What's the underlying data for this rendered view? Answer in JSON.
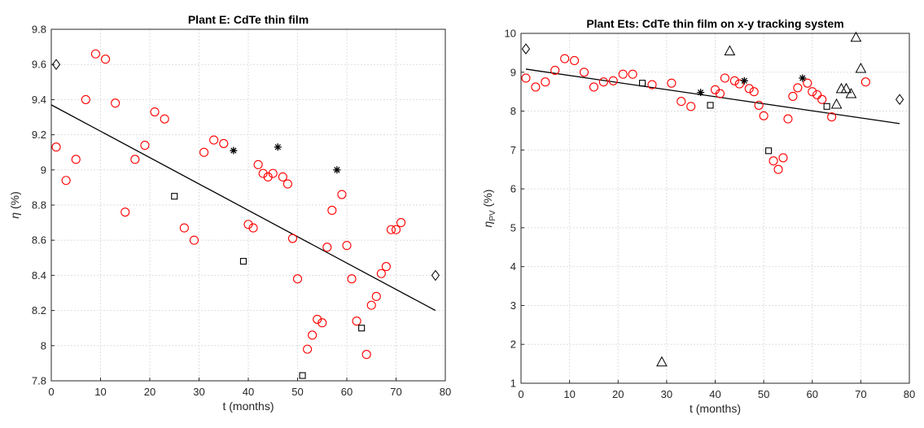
{
  "chart_data": [
    {
      "type": "scatter",
      "title": "Plant E: CdTe thin film",
      "xlabel": "t (months)",
      "ylabel": "η (%)",
      "ylabel_base": "η",
      "ylabel_sub": "",
      "ylabel_unit": "(%)",
      "xlim": [
        0,
        80
      ],
      "ylim": [
        7.8,
        9.8
      ],
      "xticks": [
        0,
        10,
        20,
        30,
        40,
        50,
        60,
        70,
        80
      ],
      "yticks": [
        7.8,
        8,
        8.2,
        8.4,
        8.6,
        8.8,
        9,
        9.2,
        9.4,
        9.6,
        9.8
      ],
      "ytick_labels": [
        "7.8",
        "8",
        "8.2",
        "8.4",
        "8.6",
        "8.8",
        "9",
        "9.2",
        "9.4",
        "9.6",
        "9.8"
      ],
      "grid": true,
      "series": [
        {
          "marker": "circle",
          "color": "#ff0000",
          "points": [
            [
              1,
              9.13
            ],
            [
              3,
              8.94
            ],
            [
              5,
              9.06
            ],
            [
              7,
              9.4
            ],
            [
              9,
              9.66
            ],
            [
              11,
              9.63
            ],
            [
              13,
              9.38
            ],
            [
              15,
              8.76
            ],
            [
              17,
              9.06
            ],
            [
              19,
              9.14
            ],
            [
              21,
              9.33
            ],
            [
              23,
              9.29
            ],
            [
              27,
              8.67
            ],
            [
              29,
              8.6
            ],
            [
              31,
              9.1
            ],
            [
              33,
              9.17
            ],
            [
              35,
              9.15
            ],
            [
              40,
              8.69
            ],
            [
              41,
              8.67
            ],
            [
              42,
              9.03
            ],
            [
              43,
              8.98
            ],
            [
              44,
              8.96
            ],
            [
              45,
              8.98
            ],
            [
              47,
              8.96
            ],
            [
              48,
              8.92
            ],
            [
              49,
              8.61
            ],
            [
              50,
              8.38
            ],
            [
              52,
              7.98
            ],
            [
              53,
              8.06
            ],
            [
              54,
              8.15
            ],
            [
              55,
              8.13
            ],
            [
              56,
              8.56
            ],
            [
              57,
              8.77
            ],
            [
              59,
              8.86
            ],
            [
              60,
              8.57
            ],
            [
              61,
              8.38
            ],
            [
              62,
              8.14
            ],
            [
              64,
              7.95
            ],
            [
              65,
              8.23
            ],
            [
              66,
              8.28
            ],
            [
              67,
              8.41
            ],
            [
              68,
              8.45
            ],
            [
              69,
              8.66
            ],
            [
              70,
              8.66
            ],
            [
              71,
              8.7
            ]
          ]
        },
        {
          "marker": "square",
          "color": "#000000",
          "points": [
            [
              25,
              8.85
            ],
            [
              39,
              8.48
            ],
            [
              51,
              7.83
            ],
            [
              63,
              8.1
            ]
          ]
        },
        {
          "marker": "asterisk",
          "color": "#000000",
          "points": [
            [
              37,
              9.11
            ],
            [
              46,
              9.13
            ],
            [
              58,
              9.0
            ]
          ]
        },
        {
          "marker": "diamond",
          "color": "#000000",
          "points": [
            [
              1,
              9.6
            ],
            [
              78,
              8.4
            ]
          ]
        }
      ],
      "trend": {
        "x": [
          0,
          78
        ],
        "y": [
          9.37,
          8.2
        ],
        "color": "#000000"
      }
    },
    {
      "type": "scatter",
      "title": "Plant Ets: CdTe thin film on x-y tracking system",
      "xlabel": "t (months)",
      "ylabel": "ηPV (%)",
      "ylabel_base": "η",
      "ylabel_sub": "PV",
      "ylabel_unit": "(%)",
      "xlim": [
        0,
        80
      ],
      "ylim": [
        1,
        10
      ],
      "xticks": [
        0,
        10,
        20,
        30,
        40,
        50,
        60,
        70,
        80
      ],
      "yticks": [
        1,
        2,
        3,
        4,
        5,
        6,
        7,
        8,
        9,
        10
      ],
      "ytick_labels": [
        "1",
        "2",
        "3",
        "4",
        "5",
        "6",
        "7",
        "8",
        "9",
        "10"
      ],
      "grid": true,
      "series": [
        {
          "marker": "circle",
          "color": "#ff0000",
          "points": [
            [
              1,
              8.85
            ],
            [
              3,
              8.62
            ],
            [
              5,
              8.75
            ],
            [
              7,
              9.05
            ],
            [
              9,
              9.35
            ],
            [
              11,
              9.3
            ],
            [
              13,
              9.0
            ],
            [
              15,
              8.62
            ],
            [
              17,
              8.75
            ],
            [
              19,
              8.78
            ],
            [
              21,
              8.95
            ],
            [
              23,
              8.95
            ],
            [
              27,
              8.68
            ],
            [
              31,
              8.72
            ],
            [
              33,
              8.25
            ],
            [
              35,
              8.12
            ],
            [
              40,
              8.55
            ],
            [
              41,
              8.45
            ],
            [
              42,
              8.85
            ],
            [
              44,
              8.78
            ],
            [
              45,
              8.7
            ],
            [
              47,
              8.58
            ],
            [
              48,
              8.5
            ],
            [
              49,
              8.15
            ],
            [
              50,
              7.88
            ],
            [
              52,
              6.72
            ],
            [
              53,
              6.5
            ],
            [
              54,
              6.8
            ],
            [
              55,
              7.8
            ],
            [
              56,
              8.38
            ],
            [
              57,
              8.6
            ],
            [
              59,
              8.72
            ],
            [
              60,
              8.5
            ],
            [
              61,
              8.42
            ],
            [
              62,
              8.3
            ],
            [
              64,
              7.85
            ],
            [
              71,
              8.75
            ]
          ]
        },
        {
          "marker": "square",
          "color": "#000000",
          "points": [
            [
              25,
              8.72
            ],
            [
              39,
              8.15
            ],
            [
              51,
              6.98
            ],
            [
              63,
              8.12
            ]
          ]
        },
        {
          "marker": "asterisk",
          "color": "#000000",
          "points": [
            [
              37,
              8.48
            ],
            [
              46,
              8.78
            ],
            [
              58,
              8.85
            ]
          ]
        },
        {
          "marker": "triangle",
          "color": "#000000",
          "points": [
            [
              29,
              1.55
            ],
            [
              43,
              9.55
            ],
            [
              65,
              8.18
            ],
            [
              66,
              8.58
            ],
            [
              67,
              8.58
            ],
            [
              68,
              8.45
            ],
            [
              69,
              9.9
            ],
            [
              70,
              9.1
            ]
          ]
        },
        {
          "marker": "diamond",
          "color": "#000000",
          "points": [
            [
              1,
              9.6
            ],
            [
              78,
              8.3
            ]
          ]
        }
      ],
      "trend": {
        "x": [
          1,
          78
        ],
        "y": [
          9.08,
          7.68
        ],
        "color": "#000000"
      }
    }
  ]
}
